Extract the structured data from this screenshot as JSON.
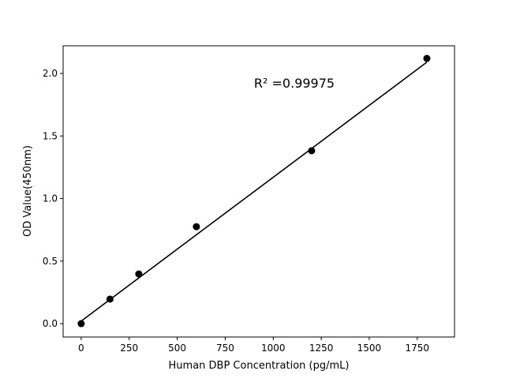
{
  "chart_data": {
    "type": "scatter",
    "title": "",
    "xlabel": "Human DBP Concentration (pg/mL)",
    "ylabel": "OD Value(450nm)",
    "xlim": [
      -94,
      1944
    ],
    "ylim": [
      -0.107,
      2.221
    ],
    "xticks": [
      0,
      250,
      500,
      750,
      1000,
      1250,
      1500,
      1750
    ],
    "yticks": [
      0.0,
      0.5,
      1.0,
      1.5,
      2.0
    ],
    "xtick_labels": [
      "0",
      "250",
      "500",
      "750",
      "1000",
      "1250",
      "1500",
      "1750"
    ],
    "ytick_labels": [
      "0.0",
      "0.5",
      "1.0",
      "1.5",
      "2.0"
    ],
    "grid": false,
    "series": [
      {
        "x": [
          0,
          150,
          300,
          600,
          1200,
          1800
        ],
        "y": [
          0.0,
          0.196,
          0.397,
          0.775,
          1.382,
          2.12
        ],
        "color": "#000000",
        "marker": "circle"
      }
    ],
    "fit_line": {
      "x": [
        0,
        1800
      ],
      "y": [
        0.02,
        2.09
      ],
      "color": "#000000"
    },
    "annotation": {
      "text": "R² =0.99975",
      "x": 900,
      "y": 1.9
    }
  }
}
